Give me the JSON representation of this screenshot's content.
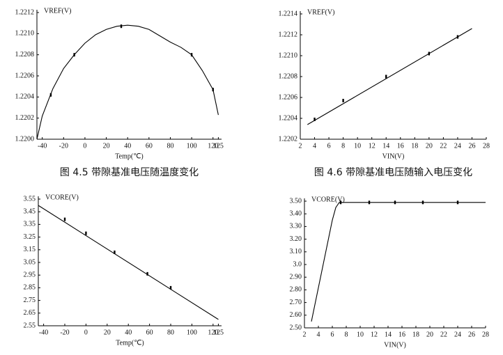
{
  "chart_data": [
    {
      "type": "line",
      "ylabel": "VREF(V)",
      "xlabel": "Temp(℃)",
      "caption": "图 4.5 带隙基准电压随温度变化",
      "xlim": [
        -45,
        128
      ],
      "xticks": [
        -40,
        -20,
        0,
        20,
        40,
        60,
        80,
        100,
        120,
        125
      ],
      "ylim": [
        1.22,
        1.2212
      ],
      "yticks": [
        {
          "value": 1.22,
          "label": "1.2200"
        },
        {
          "value": 1.2202,
          "label": "1.2202"
        },
        {
          "value": 1.2204,
          "label": "1.2204"
        },
        {
          "value": 1.2206,
          "label": "1.2206"
        },
        {
          "value": 1.2208,
          "label": "1.2208"
        },
        {
          "value": 1.221,
          "label": "1.2210"
        },
        {
          "value": 1.2212,
          "label": "1.2212"
        }
      ],
      "series": [
        {
          "color": "#000000",
          "marker": false,
          "x": [
            -45,
            -40,
            -30,
            -20,
            -10,
            0,
            10,
            20,
            30,
            40,
            50,
            60,
            70,
            80,
            90,
            100,
            110,
            120,
            125
          ],
          "values": [
            1.22,
            1.22022,
            1.22048,
            1.22067,
            1.2208,
            1.22091,
            1.22099,
            1.22104,
            1.22107,
            1.22108,
            1.22107,
            1.22104,
            1.22098,
            1.22092,
            1.22087,
            1.2208,
            1.22065,
            1.22047,
            1.22023
          ]
        },
        {
          "color": "#000000",
          "marker": true,
          "x": [
            -32,
            -10,
            34,
            100,
            120
          ],
          "values": [
            1.22042,
            1.2208,
            1.22107,
            1.2208,
            1.22047
          ]
        }
      ]
    },
    {
      "type": "line",
      "ylabel": "VREF(V)",
      "xlabel": "VIN(V)",
      "caption": "图 4.6 带隙基准电压随输入电压变化",
      "xlim": [
        2,
        28
      ],
      "xticks": [
        2,
        4,
        6,
        8,
        10,
        12,
        14,
        16,
        18,
        20,
        22,
        24,
        26,
        28
      ],
      "ylim": [
        1.2202,
        1.2214
      ],
      "yticks": [
        {
          "value": 1.2202,
          "label": "1.2202"
        },
        {
          "value": 1.2204,
          "label": "1.2204"
        },
        {
          "value": 1.2206,
          "label": "1.2206"
        },
        {
          "value": 1.2208,
          "label": "1.2208"
        },
        {
          "value": 1.221,
          "label": "1.2210"
        },
        {
          "value": 1.2212,
          "label": "1.2212"
        },
        {
          "value": 1.2214,
          "label": "1.2214"
        }
      ],
      "series": [
        {
          "color": "#000000",
          "marker": false,
          "x": [
            3,
            26
          ],
          "values": [
            1.22034,
            1.22126
          ]
        },
        {
          "color": "#000000",
          "marker": true,
          "x": [
            4,
            8,
            14,
            20,
            24
          ],
          "values": [
            1.22039,
            1.22057,
            1.2208,
            1.22102,
            1.22118
          ]
        }
      ]
    },
    {
      "type": "line",
      "ylabel": "VCORE(V)",
      "xlabel": "Temp(℃)",
      "xlim": [
        -45,
        128
      ],
      "xticks": [
        -40,
        -20,
        0,
        20,
        40,
        60,
        80,
        100,
        120,
        125
      ],
      "ylim": [
        2.55,
        3.55
      ],
      "yticks": [
        2.55,
        2.65,
        2.75,
        2.85,
        2.95,
        3.05,
        3.15,
        3.25,
        3.35,
        3.45,
        3.55
      ],
      "series": [
        {
          "color": "#000000",
          "marker": false,
          "x": [
            -45,
            125
          ],
          "values": [
            3.5,
            2.6
          ]
        },
        {
          "color": "#000000",
          "marker": true,
          "x": [
            -20,
            0,
            27,
            58,
            80
          ],
          "values": [
            3.39,
            3.28,
            3.13,
            2.96,
            2.85
          ]
        }
      ]
    },
    {
      "type": "line",
      "ylabel": "VCORE(V)",
      "xlabel": "VIN(V)",
      "xlim": [
        2,
        28
      ],
      "xticks": [
        2,
        4,
        6,
        8,
        10,
        12,
        14,
        16,
        18,
        20,
        22,
        24,
        26,
        28
      ],
      "ylim": [
        2.5,
        3.5
      ],
      "yticks": [
        {
          "value": 2.5,
          "label": "2.50"
        },
        {
          "value": 2.6,
          "label": "2.60"
        },
        {
          "value": 2.7,
          "label": "2.70"
        },
        {
          "value": 2.8,
          "label": "2.80"
        },
        {
          "value": 2.9,
          "label": "2.90"
        },
        {
          "value": 3.0,
          "label": "3.0"
        },
        {
          "value": 3.1,
          "label": "3.10"
        },
        {
          "value": 3.2,
          "label": "3.20"
        },
        {
          "value": 3.3,
          "label": "3.30"
        },
        {
          "value": 3.4,
          "label": "3.40"
        },
        {
          "value": 3.5,
          "label": "3.50"
        }
      ],
      "series": [
        {
          "color": "#000000",
          "marker": false,
          "x": [
            3,
            6,
            6.5,
            7,
            28
          ],
          "values": [
            2.55,
            3.35,
            3.45,
            3.49,
            3.49
          ]
        },
        {
          "color": "#000000",
          "marker": true,
          "x": [
            7.2,
            11.3,
            15,
            19,
            24
          ],
          "values": [
            3.49,
            3.49,
            3.49,
            3.49,
            3.49
          ]
        }
      ]
    }
  ]
}
